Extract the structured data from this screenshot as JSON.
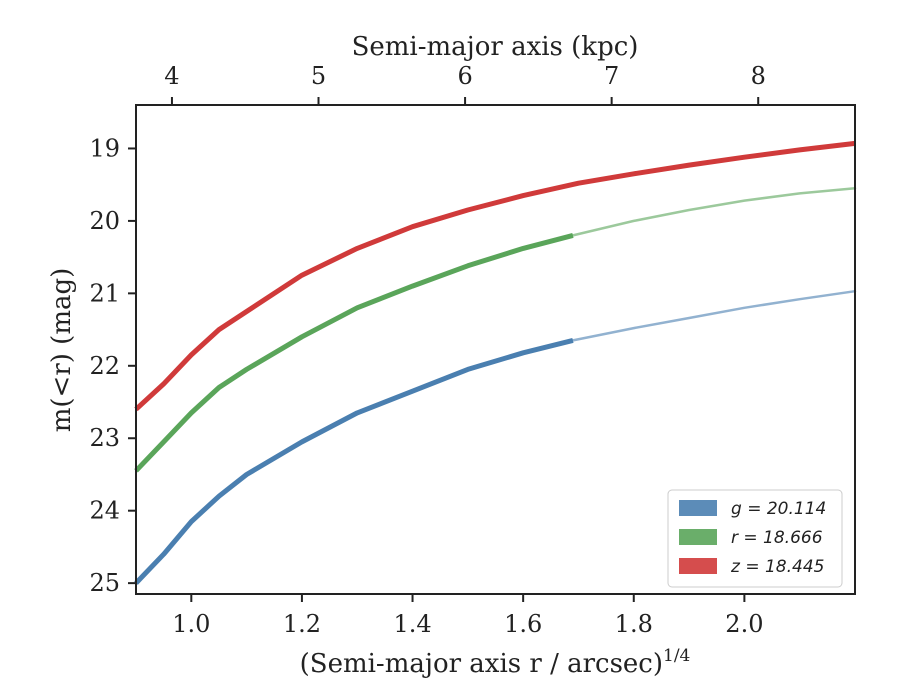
{
  "chart_data": {
    "type": "line",
    "xlabel": "(Semi-major axis r / arcsec)",
    "xlabel_exponent": "1/4",
    "x2label": "Semi-major axis (kpc)",
    "ylabel": "m(<r) (mag)",
    "xlim": [
      0.9,
      2.2
    ],
    "ylim": [
      25.15,
      18.4
    ],
    "y_inverted": true,
    "xticks": [
      1.0,
      1.2,
      1.4,
      1.6,
      1.8,
      2.0
    ],
    "xtick_labels": [
      "1.0",
      "1.2",
      "1.4",
      "1.6",
      "1.8",
      "2.0"
    ],
    "yticks": [
      19,
      20,
      21,
      22,
      23,
      24,
      25
    ],
    "ytick_labels": [
      "19",
      "20",
      "21",
      "22",
      "23",
      "24",
      "25"
    ],
    "x2ticks": [
      {
        "kpc": 4,
        "x": 0.965,
        "label": "4"
      },
      {
        "kpc": 5,
        "x": 1.23,
        "label": "5"
      },
      {
        "kpc": 6,
        "x": 1.495,
        "label": "6"
      },
      {
        "kpc": 7,
        "x": 1.76,
        "label": "7"
      },
      {
        "kpc": 8,
        "x": 2.025,
        "label": "8"
      }
    ],
    "legend_position": "lower-right",
    "grid": false,
    "series": [
      {
        "name": "g = 20.114",
        "color": "#4a7fb0",
        "solid_until_x": 1.69,
        "x": [
          0.9,
          0.95,
          1.0,
          1.05,
          1.1,
          1.2,
          1.3,
          1.4,
          1.5,
          1.6,
          1.69,
          1.8,
          1.9,
          2.0,
          2.1,
          2.2
        ],
        "y": [
          25.0,
          24.6,
          24.15,
          23.8,
          23.5,
          23.05,
          22.65,
          22.35,
          22.05,
          21.82,
          21.65,
          21.48,
          21.34,
          21.2,
          21.08,
          20.97
        ]
      },
      {
        "name": "r = 18.666",
        "color": "#5aa55a",
        "solid_until_x": 1.69,
        "x": [
          0.9,
          0.95,
          1.0,
          1.05,
          1.1,
          1.2,
          1.3,
          1.4,
          1.5,
          1.6,
          1.69,
          1.8,
          1.9,
          2.0,
          2.1,
          2.2
        ],
        "y": [
          23.45,
          23.05,
          22.65,
          22.3,
          22.05,
          21.6,
          21.2,
          20.9,
          20.62,
          20.38,
          20.2,
          20.0,
          19.85,
          19.72,
          19.62,
          19.55
        ]
      },
      {
        "name": "z = 18.445",
        "color": "#d03a3a",
        "solid_until_x": 2.2,
        "x": [
          0.9,
          0.95,
          1.0,
          1.05,
          1.1,
          1.2,
          1.3,
          1.4,
          1.5,
          1.6,
          1.7,
          1.8,
          1.9,
          2.0,
          2.1,
          2.2
        ],
        "y": [
          22.6,
          22.25,
          21.85,
          21.5,
          21.25,
          20.75,
          20.38,
          20.08,
          19.85,
          19.65,
          19.48,
          19.35,
          19.23,
          19.12,
          19.02,
          18.93
        ]
      }
    ],
    "legend": [
      {
        "label": "g = 20.114",
        "color": "#4a7fb0"
      },
      {
        "label": "r = 18.666",
        "color": "#5aa55a"
      },
      {
        "label": "z = 18.445",
        "color": "#d03a3a"
      }
    ]
  }
}
